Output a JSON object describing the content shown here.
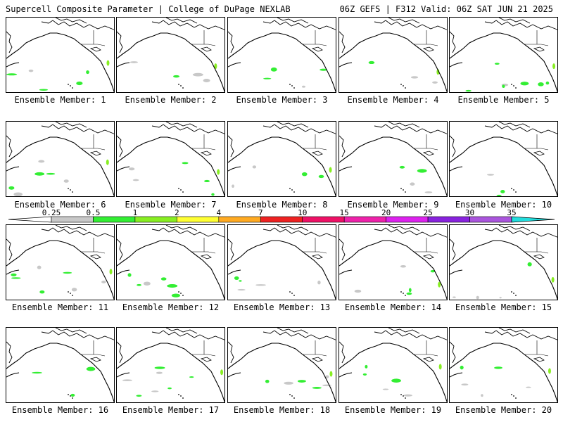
{
  "header": {
    "left_title": "Supercell Composite Parameter | College of DuPage NEXLAB",
    "right_title": "06Z GEFS | F312 Valid: 06Z SAT JUN 21 2025"
  },
  "members": [
    {
      "label": "Ensemble Member: 1"
    },
    {
      "label": "Ensemble Member: 2"
    },
    {
      "label": "Ensemble Member: 3"
    },
    {
      "label": "Ensemble Member: 4"
    },
    {
      "label": "Ensemble Member: 5"
    },
    {
      "label": "Ensemble Member: 6"
    },
    {
      "label": "Ensemble Member: 7"
    },
    {
      "label": "Ensemble Member: 8"
    },
    {
      "label": "Ensemble Member: 9"
    },
    {
      "label": "Ensemble Member: 10"
    },
    {
      "label": "Ensemble Member: 11"
    },
    {
      "label": "Ensemble Member: 12"
    },
    {
      "label": "Ensemble Member: 13"
    },
    {
      "label": "Ensemble Member: 14"
    },
    {
      "label": "Ensemble Member: 15"
    },
    {
      "label": "Ensemble Member: 16"
    },
    {
      "label": "Ensemble Member: 17"
    },
    {
      "label": "Ensemble Member: 18"
    },
    {
      "label": "Ensemble Member: 19"
    },
    {
      "label": "Ensemble Member: 20"
    }
  ],
  "legend": {
    "ticks": [
      "0.25",
      "0.5",
      "1",
      "2",
      "4",
      "7",
      "10",
      "15",
      "20",
      "25",
      "30",
      "35"
    ],
    "colors": [
      "#c8c8c8",
      "#33ee33",
      "#88ee22",
      "#ffff33",
      "#ffaa22",
      "#ee2222",
      "#ee1166",
      "#ee22aa",
      "#dd22ee",
      "#8822dd",
      "#aa55dd",
      "#22dddd"
    ]
  }
}
